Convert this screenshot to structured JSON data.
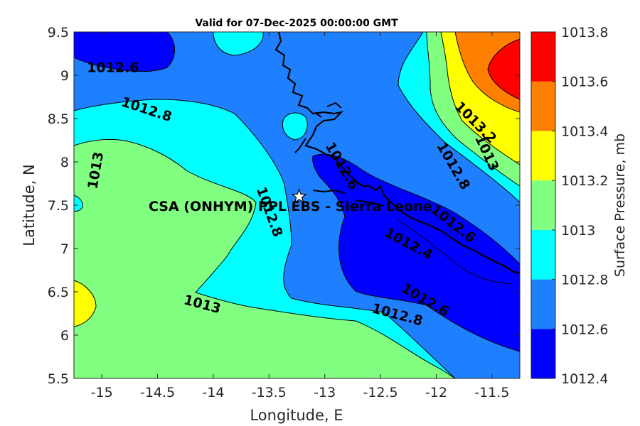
{
  "chart_data": {
    "type": "contourf",
    "title": "Valid for 07-Dec-2025 00:00:00 GMT",
    "xlabel": "Longitude, E",
    "ylabel": "Latitude, N",
    "xlim": [
      -15.25,
      -11.25
    ],
    "ylim": [
      5.5,
      9.5
    ],
    "x_ticks": [
      -15,
      -14.5,
      -14,
      -13.5,
      -13,
      -12.5,
      -12,
      -11.5
    ],
    "x_tick_labels": [
      "-15",
      "-14.5",
      "-14",
      "-13.5",
      "-13",
      "-12.5",
      "-12",
      "-11.5"
    ],
    "y_ticks": [
      5.5,
      6,
      6.5,
      7,
      7.5,
      8,
      8.5,
      9,
      9.5
    ],
    "y_tick_labels": [
      "5.5",
      "6",
      "6.5",
      "7",
      "7.5",
      "8",
      "8.5",
      "9",
      "9.5"
    ],
    "colorbar": {
      "label": "Surface Pressure, mb",
      "levels": [
        1012.4,
        1012.6,
        1012.8,
        1013,
        1013.2,
        1013.4,
        1013.6,
        1013.8
      ],
      "tick_labels": [
        "1012.4",
        "1012.6",
        "1012.8",
        "1013",
        "1013.2",
        "1013.4",
        "1013.6",
        "1013.8"
      ],
      "colors": [
        "#0000ff",
        "#1e7fff",
        "#00ffff",
        "#80ff80",
        "#ffff00",
        "#ff8000",
        "#ff0000",
        "#800000"
      ]
    },
    "contour_labels": [
      {
        "text": "1012.6",
        "x": -14.9,
        "y": 9.08
      },
      {
        "text": "1012.8",
        "x": -14.6,
        "y": 8.6
      },
      {
        "text": "1013",
        "x": -15.05,
        "y": 7.9
      },
      {
        "text": "1012.8",
        "x": -13.5,
        "y": 7.42
      },
      {
        "text": "1013",
        "x": -14.1,
        "y": 6.35
      },
      {
        "text": "1012.8",
        "x": -12.35,
        "y": 6.23
      },
      {
        "text": "1012.6",
        "x": -12.1,
        "y": 6.4
      },
      {
        "text": "1012.4",
        "x": -12.25,
        "y": 7.05
      },
      {
        "text": "1012.6",
        "x": -11.85,
        "y": 7.28
      },
      {
        "text": "1012.8",
        "x": -11.85,
        "y": 7.95
      },
      {
        "text": "1013",
        "x": -11.55,
        "y": 8.1
      },
      {
        "text": "1013.2",
        "x": -11.65,
        "y": 8.45
      },
      {
        "text": "1012.6",
        "x": -12.85,
        "y": 7.95
      }
    ],
    "site": {
      "name": "CSA (ONHYM) PPL EBS - Sierra Leone",
      "lon": -13.23,
      "lat": 7.6
    }
  }
}
